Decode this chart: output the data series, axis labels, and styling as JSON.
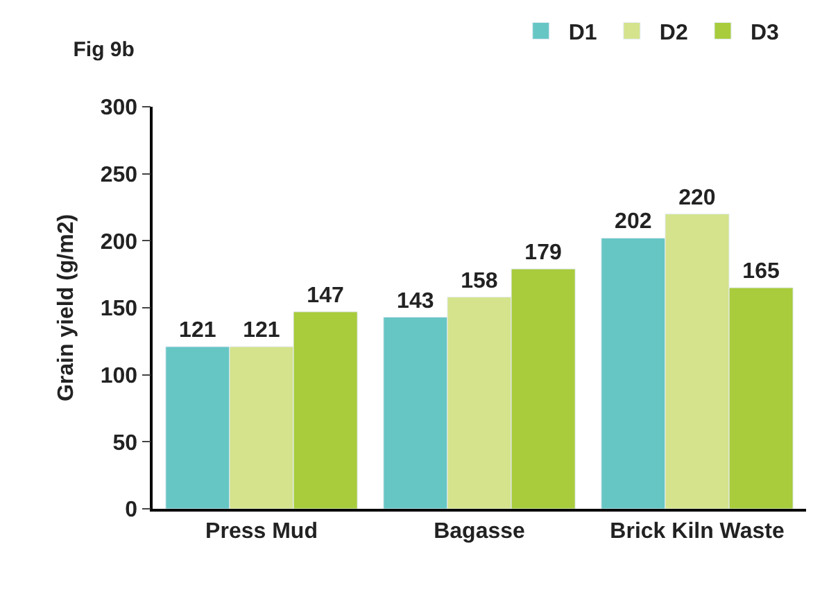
{
  "chart_data": {
    "type": "bar",
    "title": "Fig 9b",
    "ylabel": "Grain yield (g/m2)",
    "categories": [
      "Press Mud",
      "Bagasse",
      "Brick Kiln Waste"
    ],
    "series": [
      {
        "name": "D1",
        "color": "#66c6c4",
        "values": [
          121,
          143,
          202
        ]
      },
      {
        "name": "D2",
        "color": "#d4e38c",
        "values": [
          121,
          158,
          220
        ]
      },
      {
        "name": "D3",
        "color": "#a8cc3c",
        "values": [
          147,
          179,
          165
        ]
      }
    ],
    "ylim": [
      0,
      300
    ],
    "yticks": [
      0,
      50,
      100,
      150,
      200,
      250,
      300
    ],
    "data_labels": true,
    "legend": "top right"
  }
}
